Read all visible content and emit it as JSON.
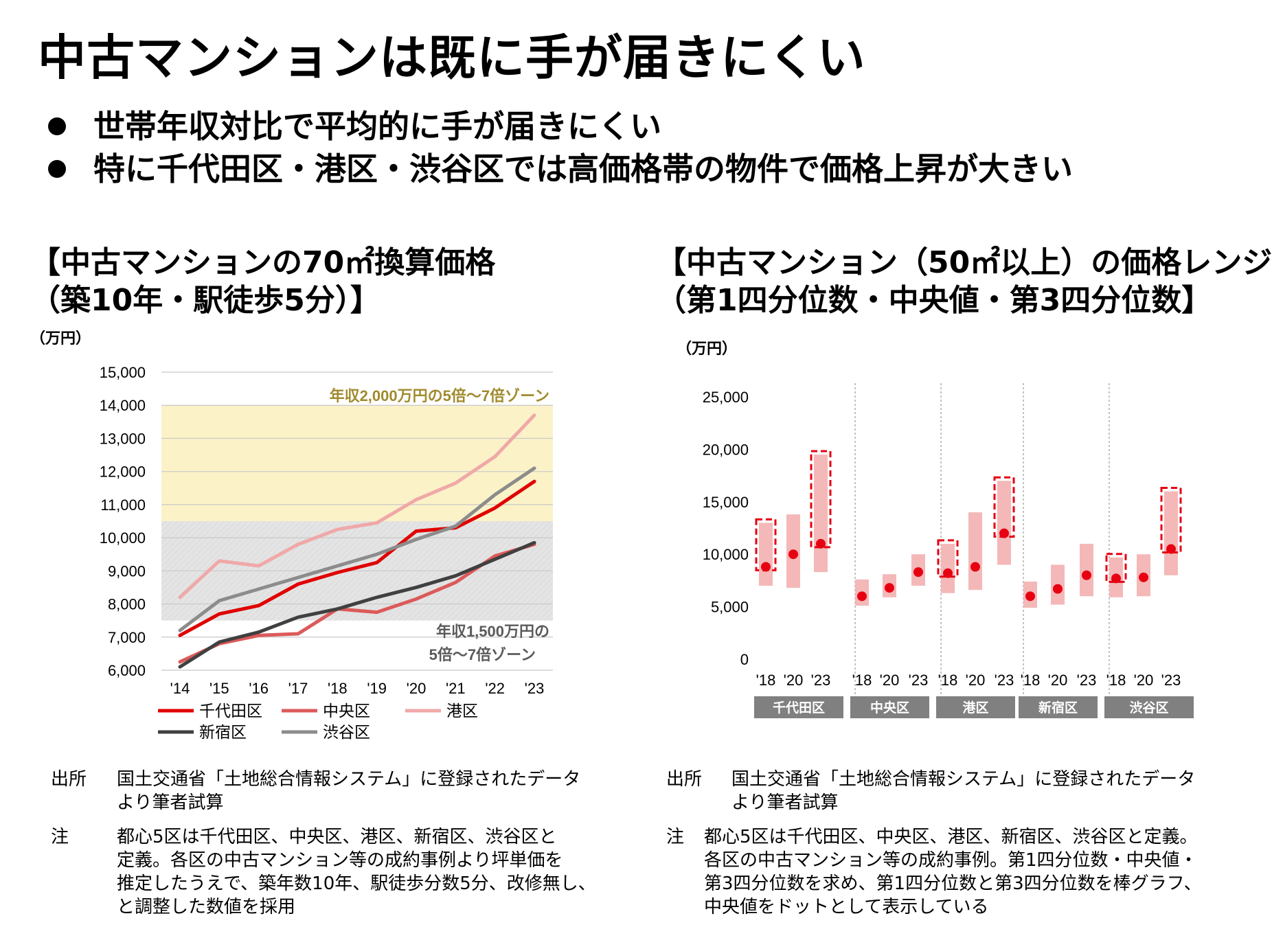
{
  "title": "中古マンションは既に手が届きにくい",
  "bullets": [
    "世帯年収対比で平均的に手が届きにくい",
    "特に千代田区・港区・渋谷区では高価格帯の物件で価格上昇が大きい"
  ],
  "left_panel": {
    "title_line1": "【中古マンションの70㎡換算価格",
    "title_line2": "（築10年・駅徒歩5分）】",
    "unit": "（万円）",
    "source_label": "出所",
    "source_text_1": "国土交通省「土地総合情報システム」に登録されたデータ",
    "source_text_2": "より筆者試算",
    "note_label": "注",
    "note_lines": [
      "都心5区は千代田区、中央区、港区、新宿区、渋谷区と",
      "定義。各区の中古マンション等の成約事例より坪単価を",
      "推定したうえで、築年数10年、駅徒歩分数5分、改修無し、",
      "と調整した数値を採用"
    ]
  },
  "right_panel": {
    "title_line1": "【中古マンション（50㎡以上）の価格レンジ",
    "title_line2": "（第1四分位数・中央値・第3四分位数】",
    "unit": "（万円）",
    "source_label": "出所",
    "source_text_1": "国土交通省「土地総合情報システム」に登録されたデータ",
    "source_text_2": "より筆者試算",
    "note_label": "注",
    "note_lines": [
      "都心5区は千代田区、中央区、港区、新宿区、渋谷区と定義。",
      "各区の中古マンション等の成約事例。第1四分位数・中央値・",
      "第3四分位数を求め、第1四分位数と第3四分位数を棒グラフ、",
      "中央値をドットとして表示している"
    ]
  },
  "chart_data": [
    {
      "type": "line",
      "unit": "（万円）",
      "x": [
        "'14",
        "'15",
        "'16",
        "'17",
        "'18",
        "'19",
        "'20",
        "'21",
        "'22",
        "'23"
      ],
      "ylim": [
        6000,
        15000
      ],
      "yticks": [
        "6,000",
        "7,000",
        "8,000",
        "9,000",
        "10,000",
        "11,000",
        "12,000",
        "13,000",
        "14,000",
        "15,000"
      ],
      "grid": true,
      "legend_position": "bottom",
      "zones": [
        {
          "label": "年収2,000万円の5倍～7倍ゾーン",
          "from": 10500,
          "to": 14000,
          "color": "#fbf2c8"
        },
        {
          "label_line1": "年収1,500万円の",
          "label_line2": "5倍～7倍ゾーン",
          "from": 7500,
          "to": 10500,
          "color": "#e4e4e4"
        }
      ],
      "series": [
        {
          "name": "千代田区",
          "color": "#e00000",
          "width": 5,
          "values": [
            7050,
            7700,
            7950,
            8600,
            8950,
            9250,
            10200,
            10300,
            10900,
            11700
          ]
        },
        {
          "name": "中央区",
          "color": "#dc5a5a",
          "width": 5,
          "values": [
            6250,
            6800,
            7050,
            7100,
            7850,
            7750,
            8150,
            8650,
            9450,
            9800
          ]
        },
        {
          "name": "港区",
          "color": "#f0a8a8",
          "width": 5,
          "values": [
            8200,
            9300,
            9150,
            9800,
            10250,
            10450,
            11150,
            11650,
            12450,
            13700
          ]
        },
        {
          "name": "新宿区",
          "color": "#404040",
          "width": 5,
          "values": [
            6100,
            6850,
            7150,
            7600,
            7850,
            8200,
            8500,
            8850,
            9350,
            9850
          ]
        },
        {
          "name": "渋谷区",
          "color": "#8c8c8c",
          "width": 5,
          "values": [
            7200,
            8100,
            8450,
            8800,
            9150,
            9500,
            9950,
            10350,
            11300,
            12100
          ]
        }
      ]
    },
    {
      "type": "range",
      "unit": "（万円）",
      "ylim": [
        0,
        25000
      ],
      "yticks": [
        "0",
        "5,000",
        "10,000",
        "15,000",
        "20,000",
        "25,000"
      ],
      "grid": false,
      "groups": [
        {
          "name": "千代田区",
          "points": [
            {
              "x": "'18",
              "q1": 7000,
              "median": 8800,
              "q3": 13000,
              "highlight": true
            },
            {
              "x": "'20",
              "q1": 6800,
              "median": 10000,
              "q3": 13800,
              "highlight": false
            },
            {
              "x": "'23",
              "q1": 8300,
              "median": 11000,
              "q3": 19500,
              "highlight": true
            }
          ]
        },
        {
          "name": "中央区",
          "points": [
            {
              "x": "'18",
              "q1": 5100,
              "median": 6000,
              "q3": 7600,
              "highlight": false
            },
            {
              "x": "'20",
              "q1": 5900,
              "median": 6800,
              "q3": 8100,
              "highlight": false
            },
            {
              "x": "'23",
              "q1": 7000,
              "median": 8300,
              "q3": 10000,
              "highlight": false
            }
          ]
        },
        {
          "name": "港区",
          "points": [
            {
              "x": "'18",
              "q1": 6300,
              "median": 8200,
              "q3": 11000,
              "highlight": true
            },
            {
              "x": "'20",
              "q1": 6600,
              "median": 8800,
              "q3": 14000,
              "highlight": false
            },
            {
              "x": "'23",
              "q1": 9000,
              "median": 12000,
              "q3": 17000,
              "highlight": true
            }
          ]
        },
        {
          "name": "新宿区",
          "points": [
            {
              "x": "'18",
              "q1": 4900,
              "median": 6000,
              "q3": 7400,
              "highlight": false
            },
            {
              "x": "'20",
              "q1": 5200,
              "median": 6700,
              "q3": 9000,
              "highlight": false
            },
            {
              "x": "'23",
              "q1": 6000,
              "median": 8000,
              "q3": 11000,
              "highlight": false
            }
          ]
        },
        {
          "name": "渋谷区",
          "points": [
            {
              "x": "'18",
              "q1": 5900,
              "median": 7700,
              "q3": 9700,
              "highlight": true
            },
            {
              "x": "'20",
              "q1": 6000,
              "median": 7800,
              "q3": 10000,
              "highlight": false
            },
            {
              "x": "'23",
              "q1": 8000,
              "median": 10500,
              "q3": 16000,
              "highlight": true
            }
          ]
        }
      ],
      "bar_color": "#f4b8b8",
      "dot_color": "#e60012",
      "highlight_color": "#e60012",
      "group_label_bg": "#808080"
    }
  ]
}
